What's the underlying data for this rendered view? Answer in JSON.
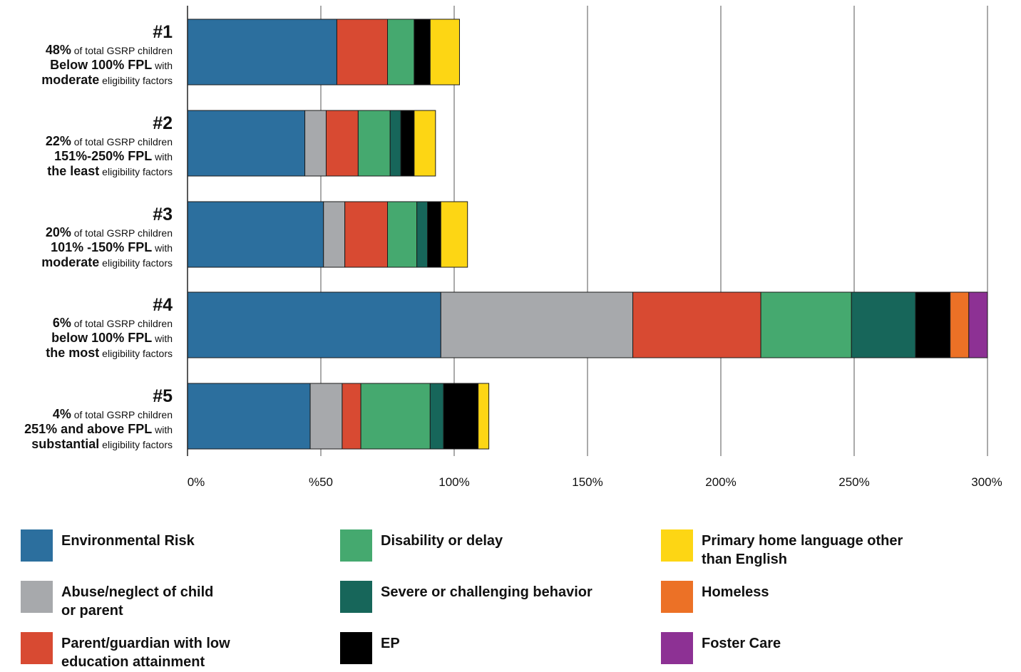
{
  "chart_data": {
    "type": "bar",
    "orientation": "horizontal",
    "stacked": true,
    "title": "",
    "xlabel": "",
    "ylabel": "",
    "xlim": [
      0,
      300
    ],
    "grid": true,
    "legend_position": "bottom",
    "ticks": [
      {
        "value": 0,
        "label": "0%"
      },
      {
        "value": 50,
        "label": "%50"
      },
      {
        "value": 100,
        "label": "100%"
      },
      {
        "value": 150,
        "label": "150%"
      },
      {
        "value": 200,
        "label": "200%"
      },
      {
        "value": 250,
        "label": "250%"
      },
      {
        "value": 300,
        "label": "300%"
      }
    ],
    "categories": [
      {
        "id": "#1",
        "lines": [
          [
            {
              "t": "48%",
              "b": true
            },
            {
              "t": " of total GSRP children",
              "b": false
            }
          ],
          [
            {
              "t": "Below 100% FPL",
              "b": true
            },
            {
              "t": " with",
              "b": false
            }
          ],
          [
            {
              "t": "moderate",
              "b": true
            },
            {
              "t": " eligibility factors",
              "b": false
            }
          ]
        ]
      },
      {
        "id": "#2",
        "lines": [
          [
            {
              "t": "22%",
              "b": true
            },
            {
              "t": " of total GSRP children",
              "b": false
            }
          ],
          [
            {
              "t": "151%-250% FPL",
              "b": true
            },
            {
              "t": " with",
              "b": false
            }
          ],
          [
            {
              "t": "the least",
              "b": true
            },
            {
              "t": " eligibility factors",
              "b": false
            }
          ]
        ]
      },
      {
        "id": "#3",
        "lines": [
          [
            {
              "t": "20%",
              "b": true
            },
            {
              "t": " of total GSRP children",
              "b": false
            }
          ],
          [
            {
              "t": "101% -150% FPL",
              "b": true
            },
            {
              "t": " with",
              "b": false
            }
          ],
          [
            {
              "t": "moderate",
              "b": true
            },
            {
              "t": " eligibility factors",
              "b": false
            }
          ]
        ]
      },
      {
        "id": "#4",
        "lines": [
          [
            {
              "t": "6%",
              "b": true
            },
            {
              "t": " of total GSRP children",
              "b": false
            }
          ],
          [
            {
              "t": "below 100% FPL",
              "b": true
            },
            {
              "t": " with",
              "b": false
            }
          ],
          [
            {
              "t": "the most",
              "b": true
            },
            {
              "t": " eligibility factors",
              "b": false
            }
          ]
        ]
      },
      {
        "id": "#5",
        "lines": [
          [
            {
              "t": "4%",
              "b": true
            },
            {
              "t": " of total GSRP children",
              "b": false
            }
          ],
          [
            {
              "t": "251% and above FPL",
              "b": true
            },
            {
              "t": " with",
              "b": false
            }
          ],
          [
            {
              "t": "substantial",
              "b": true
            },
            {
              "t": " eligibility factors",
              "b": false
            }
          ]
        ]
      }
    ],
    "series": [
      {
        "name": "Environmental Risk",
        "color": "#2c6f9e",
        "values": [
          56,
          44,
          51,
          95,
          46
        ]
      },
      {
        "name": "Abuse/neglect of child or parent",
        "color": "#a7a9ac",
        "values": [
          0,
          8,
          8,
          72,
          12
        ]
      },
      {
        "name": "Parent/guardian with low education attainment",
        "color": "#d84a32",
        "values": [
          19,
          12,
          16,
          48,
          7
        ]
      },
      {
        "name": "Disability or delay",
        "color": "#45a96f",
        "values": [
          10,
          12,
          11,
          34,
          26
        ]
      },
      {
        "name": "Severe or challenging behavior",
        "color": "#17665a",
        "values": [
          0,
          4,
          4,
          24,
          5
        ]
      },
      {
        "name": "EP",
        "color": "#000000",
        "values": [
          6,
          5,
          5,
          13,
          13
        ]
      },
      {
        "name": "Primary home language other than English",
        "color": "#fdd614",
        "values": [
          11,
          8,
          10,
          0,
          4
        ]
      },
      {
        "name": "Homeless",
        "color": "#ec7126",
        "values": [
          0,
          0,
          0,
          7,
          0
        ]
      },
      {
        "name": "Foster Care",
        "color": "#8d3194",
        "values": [
          0,
          0,
          0,
          7,
          0
        ]
      }
    ],
    "legend": [
      {
        "lines": [
          "Environmental Risk"
        ],
        "color": "#2c6f9e",
        "icon": "environmental-risk-swatch"
      },
      {
        "lines": [
          "Abuse/neglect of child",
          "or parent"
        ],
        "color": "#a7a9ac",
        "icon": "abuse-neglect-swatch"
      },
      {
        "lines": [
          "Parent/guardian with low",
          "education attainment"
        ],
        "color": "#d84a32",
        "icon": "low-education-swatch"
      },
      {
        "lines": [
          "Disability or delay"
        ],
        "color": "#45a96f",
        "icon": "disability-swatch"
      },
      {
        "lines": [
          "Severe or challenging behavior"
        ],
        "color": "#17665a",
        "icon": "behavior-swatch"
      },
      {
        "lines": [
          "EP"
        ],
        "color": "#000000",
        "icon": "ep-swatch"
      },
      {
        "lines": [
          "Primary home language other",
          "than English"
        ],
        "color": "#fdd614",
        "icon": "language-swatch"
      },
      {
        "lines": [
          "Homeless"
        ],
        "color": "#ec7126",
        "icon": "homeless-swatch"
      },
      {
        "lines": [
          "Foster Care"
        ],
        "color": "#8d3194",
        "icon": "foster-care-swatch"
      }
    ]
  }
}
